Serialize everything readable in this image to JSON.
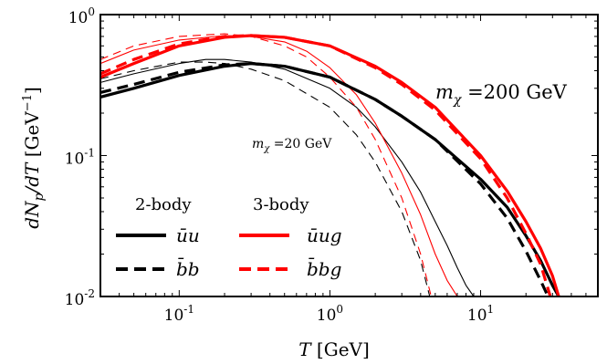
{
  "chart_data": {
    "type": "line",
    "xlabel": "T [GeV]",
    "ylabel": "dN_p/dT [GeV^-1]",
    "xscale": "log",
    "yscale": "log",
    "xlim": [
      0.03,
      60
    ],
    "ylim": [
      0.01,
      1
    ],
    "x_ticks": [
      {
        "value": 0.1,
        "base": "10",
        "exp": "-1"
      },
      {
        "value": 1,
        "base": "10",
        "exp": "0"
      },
      {
        "value": 10,
        "base": "10",
        "exp": "1"
      }
    ],
    "y_ticks": [
      {
        "value": 0.01,
        "base": "10",
        "exp": "-2"
      },
      {
        "value": 0.1,
        "base": "10",
        "exp": "-1"
      },
      {
        "value": 1,
        "base": "10",
        "exp": "0"
      }
    ],
    "annotations": {
      "heavy": "m_χ = 200 GeV",
      "light": "m_χ = 20 GeV"
    },
    "legend": {
      "placement": "lower-left",
      "col1_title": "2-body",
      "col2_title": "3-body",
      "entries": [
        {
          "label": "ūu",
          "color": "#000000",
          "dash": "solid"
        },
        {
          "label": "b̄b",
          "color": "#000000",
          "dash": "dashed"
        },
        {
          "label": "ūug",
          "color": "#ff0000",
          "dash": "solid"
        },
        {
          "label": "b̄bg",
          "color": "#ff0000",
          "dash": "dashed"
        }
      ]
    },
    "series": [
      {
        "mass": 200,
        "color": "#000000",
        "dash": "solid",
        "width": 3.2,
        "x": [
          0.03,
          0.05,
          0.1,
          0.2,
          0.3,
          0.5,
          1,
          2,
          3,
          5,
          10,
          15,
          20,
          25,
          30,
          33
        ],
        "y": [
          0.26,
          0.3,
          0.37,
          0.43,
          0.45,
          0.43,
          0.36,
          0.25,
          0.19,
          0.13,
          0.068,
          0.043,
          0.027,
          0.018,
          0.012,
          0.01
        ]
      },
      {
        "mass": 200,
        "color": "#000000",
        "dash": "dashed",
        "width": 3.2,
        "x": [
          0.03,
          0.05,
          0.1,
          0.2,
          0.3,
          0.5,
          1,
          2,
          3,
          5,
          10,
          15,
          20,
          25,
          28
        ],
        "y": [
          0.28,
          0.32,
          0.39,
          0.44,
          0.45,
          0.43,
          0.36,
          0.25,
          0.19,
          0.13,
          0.063,
          0.036,
          0.021,
          0.013,
          0.01
        ]
      },
      {
        "mass": 200,
        "color": "#ff0000",
        "dash": "solid",
        "width": 3.2,
        "x": [
          0.03,
          0.05,
          0.1,
          0.2,
          0.3,
          0.5,
          1,
          2,
          3,
          5,
          10,
          15,
          20,
          25,
          30,
          33
        ],
        "y": [
          0.36,
          0.45,
          0.6,
          0.69,
          0.71,
          0.69,
          0.6,
          0.43,
          0.33,
          0.22,
          0.1,
          0.056,
          0.034,
          0.022,
          0.014,
          0.01
        ]
      },
      {
        "mass": 200,
        "color": "#ff0000",
        "dash": "dashed",
        "width": 3.2,
        "x": [
          0.03,
          0.05,
          0.1,
          0.2,
          0.3,
          0.5,
          1,
          2,
          3,
          5,
          10,
          15,
          20,
          25,
          29
        ],
        "y": [
          0.38,
          0.48,
          0.62,
          0.7,
          0.71,
          0.69,
          0.6,
          0.42,
          0.32,
          0.21,
          0.095,
          0.05,
          0.028,
          0.017,
          0.01
        ]
      },
      {
        "mass": 20,
        "color": "#000000",
        "dash": "solid",
        "width": 1.1,
        "x": [
          0.03,
          0.05,
          0.1,
          0.15,
          0.2,
          0.3,
          0.5,
          1,
          1.5,
          2,
          3,
          4,
          5,
          6,
          7,
          8,
          9
        ],
        "y": [
          0.33,
          0.38,
          0.45,
          0.48,
          0.48,
          0.46,
          0.41,
          0.3,
          0.22,
          0.16,
          0.09,
          0.055,
          0.034,
          0.023,
          0.016,
          0.012,
          0.01
        ]
      },
      {
        "mass": 20,
        "color": "#000000",
        "dash": "dashed",
        "width": 1.1,
        "x": [
          0.03,
          0.05,
          0.1,
          0.15,
          0.2,
          0.3,
          0.5,
          1,
          1.5,
          2,
          3,
          4,
          4.6
        ],
        "y": [
          0.35,
          0.4,
          0.46,
          0.46,
          0.45,
          0.41,
          0.34,
          0.22,
          0.14,
          0.09,
          0.04,
          0.018,
          0.01
        ]
      },
      {
        "mass": 20,
        "color": "#ff0000",
        "dash": "solid",
        "width": 1.1,
        "x": [
          0.03,
          0.05,
          0.1,
          0.2,
          0.3,
          0.5,
          0.7,
          1,
          1.5,
          2,
          3,
          4,
          5,
          6,
          7
        ],
        "y": [
          0.45,
          0.56,
          0.66,
          0.71,
          0.7,
          0.64,
          0.55,
          0.42,
          0.27,
          0.17,
          0.075,
          0.038,
          0.02,
          0.013,
          0.01
        ]
      },
      {
        "mass": 20,
        "color": "#ff0000",
        "dash": "dashed",
        "width": 1.1,
        "x": [
          0.03,
          0.05,
          0.1,
          0.2,
          0.3,
          0.5,
          0.7,
          1,
          1.5,
          2,
          3,
          4,
          4.7
        ],
        "y": [
          0.48,
          0.6,
          0.7,
          0.73,
          0.7,
          0.6,
          0.5,
          0.36,
          0.22,
          0.13,
          0.05,
          0.02,
          0.01
        ]
      }
    ]
  }
}
